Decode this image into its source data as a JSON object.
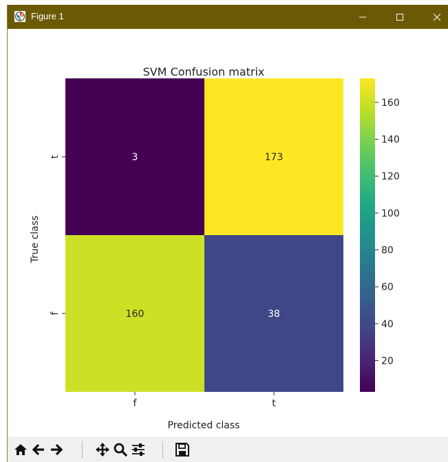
{
  "window": {
    "title": "Figure 1",
    "icon": "matplotlib-logo-icon",
    "titlebar_color": "#6b5a05",
    "controls": [
      "minimize-icon",
      "maximize-icon",
      "close-icon"
    ]
  },
  "chart_data": {
    "type": "heatmap",
    "title": "SVM Confusion matrix",
    "xlabel": "Predicted class",
    "ylabel": "True class",
    "x_categories": [
      "f",
      "t"
    ],
    "y_categories": [
      "t",
      "f"
    ],
    "values": [
      [
        3,
        173
      ],
      [
        160,
        38
      ]
    ],
    "colormap": "viridis",
    "colorbar": {
      "range": [
        3,
        173
      ],
      "ticks": [
        20,
        40,
        60,
        80,
        100,
        120,
        140,
        160
      ]
    }
  },
  "toolbar": {
    "buttons": [
      {
        "name": "home-button",
        "icon": "home-icon"
      },
      {
        "name": "back-button",
        "icon": "arrow-left-icon"
      },
      {
        "name": "forward-button",
        "icon": "arrow-right-icon"
      },
      {
        "name": "pan-button",
        "icon": "move-icon"
      },
      {
        "name": "zoom-button",
        "icon": "magnifier-icon"
      },
      {
        "name": "configure-subplots-button",
        "icon": "sliders-icon"
      },
      {
        "name": "save-button",
        "icon": "floppy-disk-icon"
      }
    ]
  }
}
